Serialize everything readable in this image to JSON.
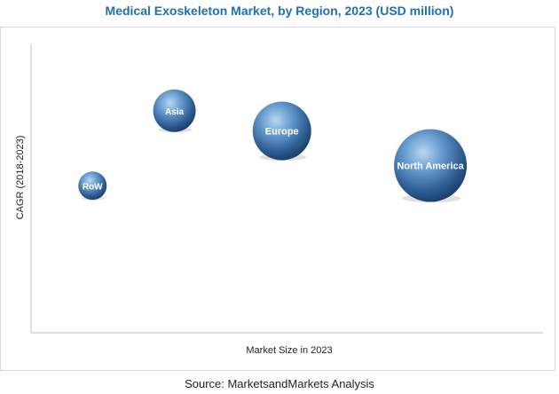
{
  "header": {
    "title": "Medical Exoskeleton Market, by Region, 2023 (USD million)"
  },
  "footer": {
    "source": "Source: MarketsandMarkets Analysis"
  },
  "chart_data": {
    "type": "scatter",
    "title": "Medical Exoskeleton Market, by Region, 2023 (USD million)",
    "xlabel": "Market Size in 2023",
    "ylabel": "CAGR (2018-2023)",
    "xlim": [
      0,
      100
    ],
    "ylim": [
      0,
      100
    ],
    "grid": false,
    "legend": "none",
    "points": [
      {
        "label": "RoW",
        "x": 12,
        "y": 51,
        "size": 16
      },
      {
        "label": "Asia",
        "x": 28,
        "y": 77,
        "size": 24
      },
      {
        "label": "Europe",
        "x": 49,
        "y": 70,
        "size": 33
      },
      {
        "label": "North America",
        "x": 78,
        "y": 58,
        "size": 41
      }
    ]
  }
}
